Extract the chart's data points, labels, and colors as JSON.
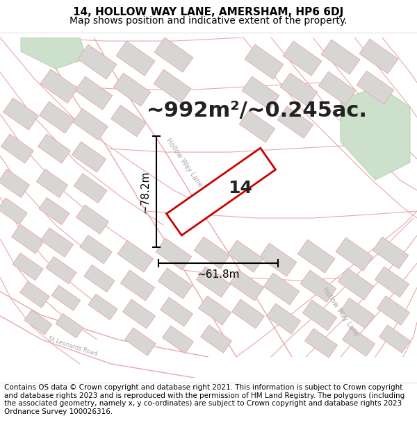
{
  "title_line1": "14, HOLLOW WAY LANE, AMERSHAM, HP6 6DJ",
  "title_line2": "Map shows position and indicative extent of the property.",
  "area_text": "~992m²/~0.245ac.",
  "property_number": "14",
  "dim_width": "~61.8m",
  "dim_height": "~78.2m",
  "footer_text": "Contains OS data © Crown copyright and database right 2021. This information is subject to Crown copyright and database rights 2023 and is reproduced with the permission of HM Land Registry. The polygons (including the associated geometry, namely x, y co-ordinates) are subject to Crown copyright and database rights 2023 Ordnance Survey 100026316.",
  "bg_map_color": "#f9f6f6",
  "road_line_color": "#e8a8a8",
  "building_fill": "#d8d5d5",
  "building_edge": "#e8a8a8",
  "green_area_color": "#cce0cc",
  "green_edge_color": "#aaccaa",
  "property_fill": "#ffffff",
  "property_edge": "#cc0000",
  "dim_line_color": "#000000",
  "label_road_color": "#aaaaaa",
  "title_fontsize": 11,
  "subtitle_fontsize": 10,
  "area_fontsize": 22,
  "footer_fontsize": 7.5,
  "number_fontsize": 18,
  "dim_fontsize": 11,
  "road_label_fontsize": 7
}
